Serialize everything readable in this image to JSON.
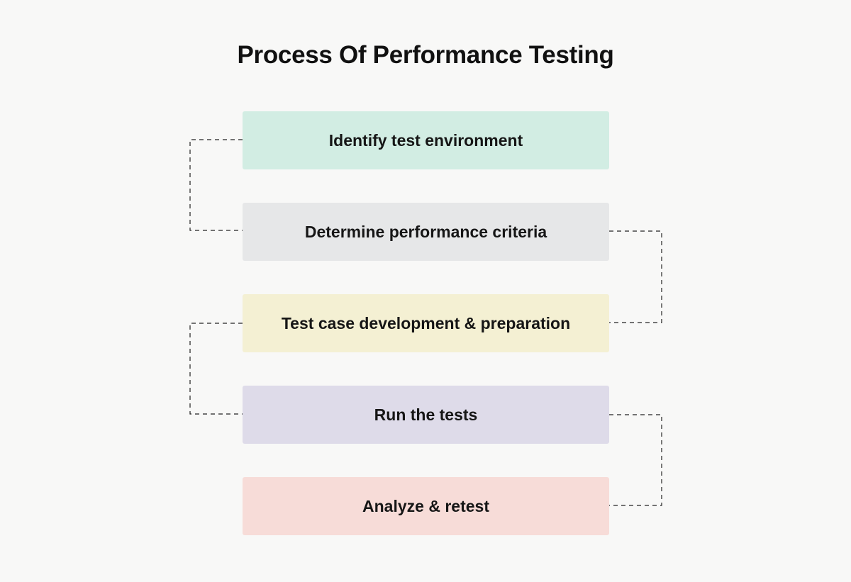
{
  "title": "Process Of Performance Testing",
  "steps": [
    {
      "label": "Identify test environment",
      "color": "#d2ede3"
    },
    {
      "label": "Determine performance criteria",
      "color": "#e6e7e8"
    },
    {
      "label": "Test case development & preparation",
      "color": "#f4f0d3"
    },
    {
      "label": "Run the tests",
      "color": "#dedbe9"
    },
    {
      "label": "Analyze & retest",
      "color": "#f7dcd8"
    }
  ],
  "connector_color": "#222222"
}
